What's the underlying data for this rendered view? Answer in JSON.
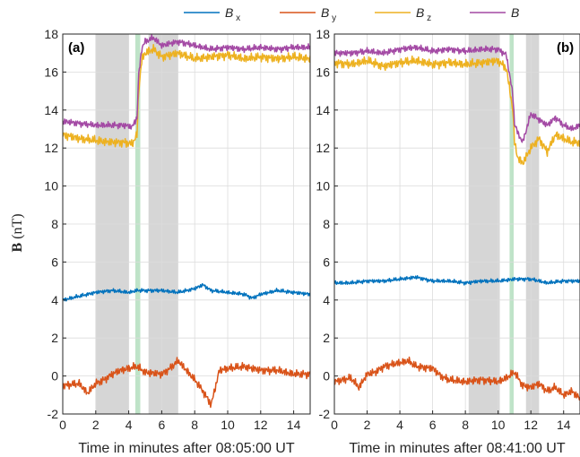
{
  "chart_data": [
    {
      "type": "line",
      "panel_label": "(a)",
      "xlabel": "Time in minutes after 08:05:00 UT",
      "ylabel": "B (nT)",
      "xlim": [
        0,
        15
      ],
      "ylim": [
        -2,
        18
      ],
      "xticks": [
        0,
        2,
        4,
        6,
        8,
        10,
        12,
        14
      ],
      "yticks": [
        -2,
        0,
        2,
        4,
        6,
        8,
        10,
        12,
        14,
        16,
        18
      ],
      "grid": true,
      "shaded_intervals": [
        {
          "x0": 2.0,
          "x1": 4.0,
          "color": "#d6d6d6"
        },
        {
          "x0": 5.2,
          "x1": 7.0,
          "color": "#d6d6d6"
        },
        {
          "x0": 4.4,
          "x1": 4.7,
          "color": "#bfe3c8"
        }
      ],
      "series": [
        {
          "name": "B_x",
          "color": "#0072BD",
          "x": [
            0,
            1,
            2,
            3,
            4,
            4.5,
            5,
            6,
            7,
            8,
            8.5,
            9,
            10,
            11,
            11.5,
            12,
            13,
            14,
            15
          ],
          "y": [
            4.0,
            4.2,
            4.4,
            4.5,
            4.4,
            4.5,
            4.5,
            4.5,
            4.4,
            4.6,
            4.8,
            4.5,
            4.4,
            4.3,
            4.1,
            4.3,
            4.5,
            4.4,
            4.3
          ]
        },
        {
          "name": "B_y",
          "color": "#D95319",
          "x": [
            0,
            1,
            1.5,
            2,
            2.5,
            3,
            3.5,
            4,
            4.5,
            5,
            6,
            6.5,
            7,
            7.5,
            8,
            8.5,
            9,
            9.5,
            10,
            11,
            12,
            13,
            14,
            15
          ],
          "y": [
            -0.5,
            -0.4,
            -0.9,
            -0.4,
            -0.2,
            0.1,
            0.3,
            0.4,
            0.5,
            0.2,
            0.1,
            0.4,
            0.8,
            0.3,
            -0.2,
            -0.8,
            -1.5,
            0.3,
            0.4,
            0.5,
            0.3,
            0.3,
            0.1,
            0.1
          ]
        },
        {
          "name": "B_z",
          "color": "#EDB120",
          "x": [
            0,
            1,
            2,
            3,
            3.8,
            4.2,
            4.5,
            4.6,
            4.8,
            5,
            5.5,
            6,
            7,
            8,
            9,
            10,
            11,
            12,
            13,
            14,
            15
          ],
          "y": [
            12.7,
            12.5,
            12.4,
            12.3,
            12.3,
            12.2,
            12.7,
            15.0,
            16.7,
            17.0,
            17.2,
            16.8,
            17.0,
            16.7,
            16.8,
            16.9,
            16.7,
            16.8,
            16.7,
            16.8,
            16.7
          ]
        },
        {
          "name": "B",
          "color": "#A349A4",
          "x": [
            0,
            1,
            2,
            3,
            3.8,
            4.2,
            4.5,
            4.6,
            4.8,
            5,
            5.5,
            6,
            7,
            8,
            9,
            10,
            11,
            12,
            13,
            14,
            15
          ],
          "y": [
            13.4,
            13.3,
            13.2,
            13.2,
            13.2,
            13.1,
            13.6,
            15.8,
            17.3,
            17.6,
            17.8,
            17.4,
            17.6,
            17.4,
            17.2,
            17.3,
            17.2,
            17.3,
            17.2,
            17.3,
            17.3
          ]
        }
      ]
    },
    {
      "type": "line",
      "panel_label": "(b)",
      "xlabel": "Time in minutes after 08:41:00 UT",
      "xlim": [
        0,
        15
      ],
      "ylim": [
        -2,
        18
      ],
      "xticks": [
        0,
        2,
        4,
        6,
        8,
        10,
        12,
        14
      ],
      "yticks": [
        -2,
        0,
        2,
        4,
        6,
        8,
        10,
        12,
        14,
        16,
        18
      ],
      "grid": true,
      "shaded_intervals": [
        {
          "x0": 8.2,
          "x1": 10.1,
          "color": "#d6d6d6"
        },
        {
          "x0": 11.7,
          "x1": 12.5,
          "color": "#d6d6d6"
        },
        {
          "x0": 10.7,
          "x1": 10.95,
          "color": "#bfe3c8"
        }
      ],
      "series": [
        {
          "name": "B_x",
          "color": "#0072BD",
          "x": [
            0,
            1,
            2,
            3,
            4,
            5,
            6,
            7,
            8,
            9,
            10,
            11,
            12,
            13,
            14,
            15
          ],
          "y": [
            4.9,
            4.9,
            5.0,
            5.0,
            5.1,
            5.2,
            5.0,
            5.0,
            4.9,
            5.0,
            5.0,
            5.1,
            5.1,
            4.9,
            5.0,
            5.0
          ]
        },
        {
          "name": "B_y",
          "color": "#D95319",
          "x": [
            0,
            1,
            1.5,
            2,
            2.5,
            3,
            4,
            4.5,
            5,
            6,
            6.5,
            7,
            8,
            9,
            10,
            10.5,
            11,
            11.5,
            12,
            12.5,
            13,
            13.5,
            14,
            14.5,
            15
          ],
          "y": [
            -0.3,
            -0.1,
            -0.6,
            0.1,
            0.2,
            0.5,
            0.7,
            0.8,
            0.5,
            0.4,
            0.0,
            -0.2,
            -0.3,
            -0.2,
            -0.3,
            -0.1,
            0.2,
            -0.5,
            -0.6,
            -0.4,
            -0.8,
            -0.6,
            -1.0,
            -0.8,
            -1.2
          ]
        },
        {
          "name": "B_z",
          "color": "#EDB120",
          "x": [
            0,
            1,
            2,
            3,
            4,
            5,
            6,
            7,
            8,
            9,
            10,
            10.5,
            10.9,
            11.0,
            11.2,
            11.5,
            12,
            12.5,
            13,
            13.5,
            14,
            14.5,
            15
          ],
          "y": [
            16.5,
            16.4,
            16.6,
            16.3,
            16.5,
            16.6,
            16.4,
            16.5,
            16.4,
            16.5,
            16.6,
            16.2,
            14.0,
            12.3,
            11.5,
            11.2,
            12.0,
            12.5,
            11.8,
            12.7,
            12.5,
            12.3,
            12.3
          ]
        },
        {
          "name": "B",
          "color": "#A349A4",
          "x": [
            0,
            1,
            2,
            3,
            4,
            5,
            6,
            7,
            8,
            9,
            10,
            10.5,
            10.9,
            11.0,
            11.2,
            11.5,
            12,
            12.5,
            13,
            13.5,
            14,
            14.5,
            15
          ],
          "y": [
            17.0,
            17.0,
            17.1,
            17.0,
            17.2,
            17.3,
            17.1,
            17.2,
            17.1,
            17.2,
            17.2,
            16.9,
            14.8,
            13.3,
            12.8,
            12.3,
            13.8,
            13.5,
            13.2,
            13.6,
            13.2,
            13.0,
            13.2
          ]
        }
      ]
    }
  ],
  "legend": {
    "position": "top-center",
    "items": [
      {
        "base": "B",
        "sub": "x",
        "color": "#0072BD"
      },
      {
        "base": "B",
        "sub": "y",
        "color": "#D95319"
      },
      {
        "base": "B",
        "sub": "z",
        "color": "#EDB120"
      },
      {
        "base": "B",
        "sub": "",
        "color": "#A349A4"
      }
    ]
  }
}
